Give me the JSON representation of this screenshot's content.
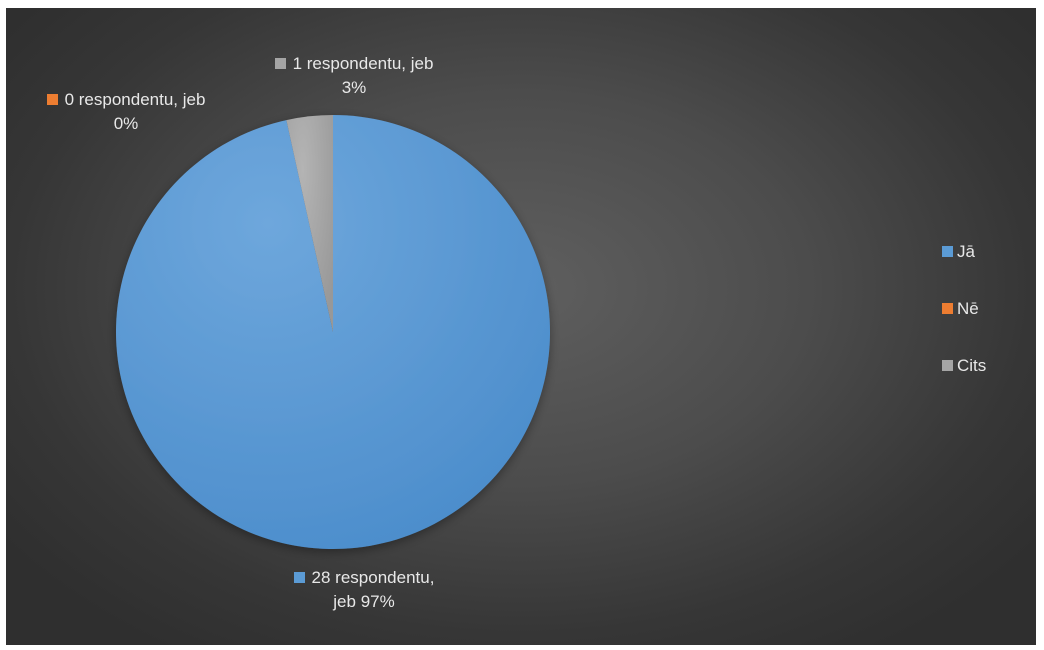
{
  "chart_data": {
    "type": "pie",
    "categories": [
      "Jā",
      "Nē",
      "Cits"
    ],
    "values": [
      28,
      0,
      1
    ],
    "percentages": [
      97,
      0,
      3
    ],
    "colors": [
      "#5b9bd5",
      "#ed7d31",
      "#a5a5a5"
    ],
    "data_labels": [
      {
        "line1": "28 respondentu,",
        "line2": "jeb 97%"
      },
      {
        "line1": "0 respondentu, jeb",
        "line2": "0%"
      },
      {
        "line1": "1 respondentu, jeb",
        "line2": "3%"
      }
    ],
    "legend": {
      "position": "right",
      "items": [
        "Jā",
        "Nē",
        "Cits"
      ]
    },
    "start_angle": "12 o'clock",
    "direction": "clockwise"
  }
}
